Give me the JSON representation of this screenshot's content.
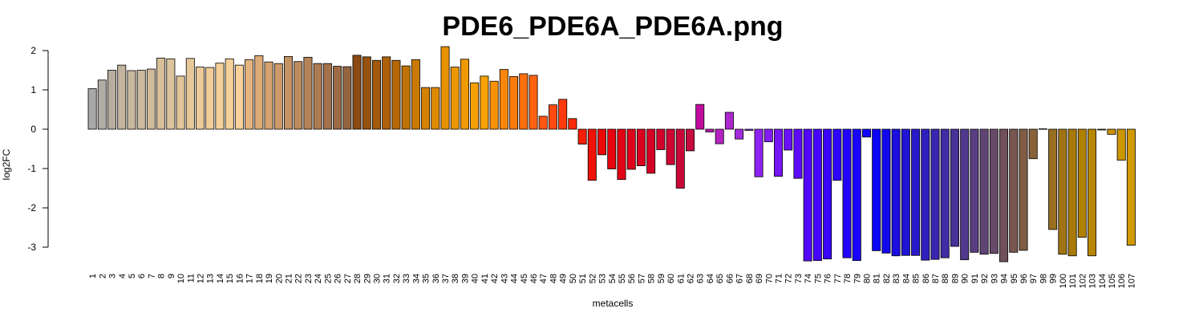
{
  "chart_data": {
    "type": "bar",
    "title": "PDE6_PDE6A_PDE6A.png",
    "xlabel": "metacells",
    "ylabel": "log2FC",
    "ylim": [
      -3.5,
      2.2
    ],
    "yticks": [
      -3,
      -2,
      -1,
      0,
      1,
      2
    ],
    "categories": [
      "1",
      "2",
      "3",
      "4",
      "5",
      "6",
      "7",
      "8",
      "9",
      "10",
      "11",
      "12",
      "13",
      "14",
      "15",
      "16",
      "17",
      "18",
      "19",
      "20",
      "21",
      "22",
      "23",
      "24",
      "25",
      "26",
      "27",
      "28",
      "29",
      "30",
      "31",
      "32",
      "33",
      "34",
      "35",
      "36",
      "37",
      "38",
      "39",
      "40",
      "41",
      "42",
      "43",
      "44",
      "45",
      "46",
      "47",
      "48",
      "49",
      "50",
      "51",
      "52",
      "53",
      "54",
      "55",
      "56",
      "57",
      "58",
      "59",
      "60",
      "61",
      "62",
      "63",
      "64",
      "65",
      "66",
      "67",
      "68",
      "69",
      "70",
      "71",
      "72",
      "73",
      "74",
      "75",
      "76",
      "77",
      "78",
      "79",
      "80",
      "81",
      "82",
      "83",
      "84",
      "85",
      "86",
      "87",
      "88",
      "89",
      "90",
      "91",
      "92",
      "93",
      "94",
      "95",
      "96",
      "97",
      "98",
      "99",
      "100",
      "101",
      "102",
      "103",
      "104",
      "105",
      "106",
      "107"
    ],
    "values": [
      1.03,
      1.25,
      1.5,
      1.63,
      1.49,
      1.5,
      1.53,
      1.81,
      1.79,
      1.35,
      1.8,
      1.58,
      1.57,
      1.68,
      1.79,
      1.63,
      1.77,
      1.87,
      1.71,
      1.67,
      1.85,
      1.72,
      1.83,
      1.67,
      1.67,
      1.6,
      1.59,
      1.88,
      1.84,
      1.75,
      1.84,
      1.75,
      1.61,
      1.77,
      1.06,
      1.06,
      2.1,
      1.58,
      1.78,
      1.18,
      1.35,
      1.22,
      1.52,
      1.34,
      1.41,
      1.37,
      0.33,
      0.62,
      0.76,
      0.27,
      -0.38,
      -1.3,
      -0.65,
      -1.01,
      -1.28,
      -1.02,
      -0.93,
      -1.12,
      -0.52,
      -0.9,
      -1.5,
      -0.55,
      0.63,
      -0.07,
      -0.37,
      0.43,
      -0.25,
      -0.03,
      -1.21,
      -0.32,
      -1.2,
      -0.53,
      -1.25,
      -3.35,
      -3.34,
      -3.3,
      -1.3,
      -3.27,
      -3.34,
      -0.2,
      -3.09,
      -3.15,
      -3.22,
      -3.21,
      -3.21,
      -3.33,
      -3.31,
      -3.27,
      -2.98,
      -3.32,
      -3.13,
      -3.18,
      -3.16,
      -3.37,
      -3.13,
      -3.08,
      -0.75,
      0.01,
      -2.55,
      -3.18,
      -3.22,
      -2.75,
      -3.22,
      -0.02,
      -0.13,
      -0.79,
      -2.95
    ],
    "colors": [
      "#a8a8a8",
      "#b0aca6",
      "#b8aea0",
      "#c2b49e",
      "#c8b8a0",
      "#ccba9e",
      "#cfbb9a",
      "#d6be98",
      "#dcc39c",
      "#e2c598",
      "#e6c89a",
      "#ecca9a",
      "#f0cc98",
      "#f4d09a",
      "#f6d099",
      "#f8d29a",
      "#e4b47e",
      "#dcab76",
      "#d4a370",
      "#cc9b6a",
      "#c49364",
      "#bc8b5e",
      "#b48358",
      "#ac7b52",
      "#a4734c",
      "#9c6b46",
      "#946340",
      "#8b4a13",
      "#975210",
      "#a35a0c",
      "#ad600a",
      "#b56808",
      "#c07206",
      "#c97a04",
      "#d58200",
      "#dd8a00",
      "#e69200",
      "#ec9600",
      "#f09a02",
      "#f5a005",
      "#f8a006",
      "#fa9208",
      "#fb860a",
      "#fc7a0c",
      "#fd6e0e",
      "#fe6210",
      "#ff5612",
      "#ff4a0f",
      "#ff3a0c",
      "#fb2a0a",
      "#f51e08",
      "#ef1206",
      "#ea0808",
      "#e6040e",
      "#e20314",
      "#de021a",
      "#da0220",
      "#d60226",
      "#d2022c",
      "#ce0432",
      "#ca0838",
      "#c60c3e",
      "#c00c9e",
      "#ba18b2",
      "#b422c0",
      "#ac28ce",
      "#a22cdc",
      "#9a28e8",
      "#8e22f0",
      "#821cf4",
      "#7616f6",
      "#6a10f8",
      "#5e0afa",
      "#5206fb",
      "#4604fc",
      "#3a04fc",
      "#2e04fd",
      "#2204fe",
      "#1804fe",
      "#1004ff",
      "#0c04f8",
      "#1208ec",
      "#1a0ee0",
      "#2014d4",
      "#281ac8",
      "#3020bc",
      "#3826b0",
      "#402ca4",
      "#483298",
      "#50388c",
      "#583e80",
      "#604474",
      "#684a68",
      "#70505c",
      "#785650",
      "#805c44",
      "#886238",
      "#90682c",
      "#986e20",
      "#a07414",
      "#a87a08",
      "#b08000",
      "#b88600",
      "#c08c00",
      "#c89200",
      "#cc9600",
      "#d09a02"
    ]
  }
}
